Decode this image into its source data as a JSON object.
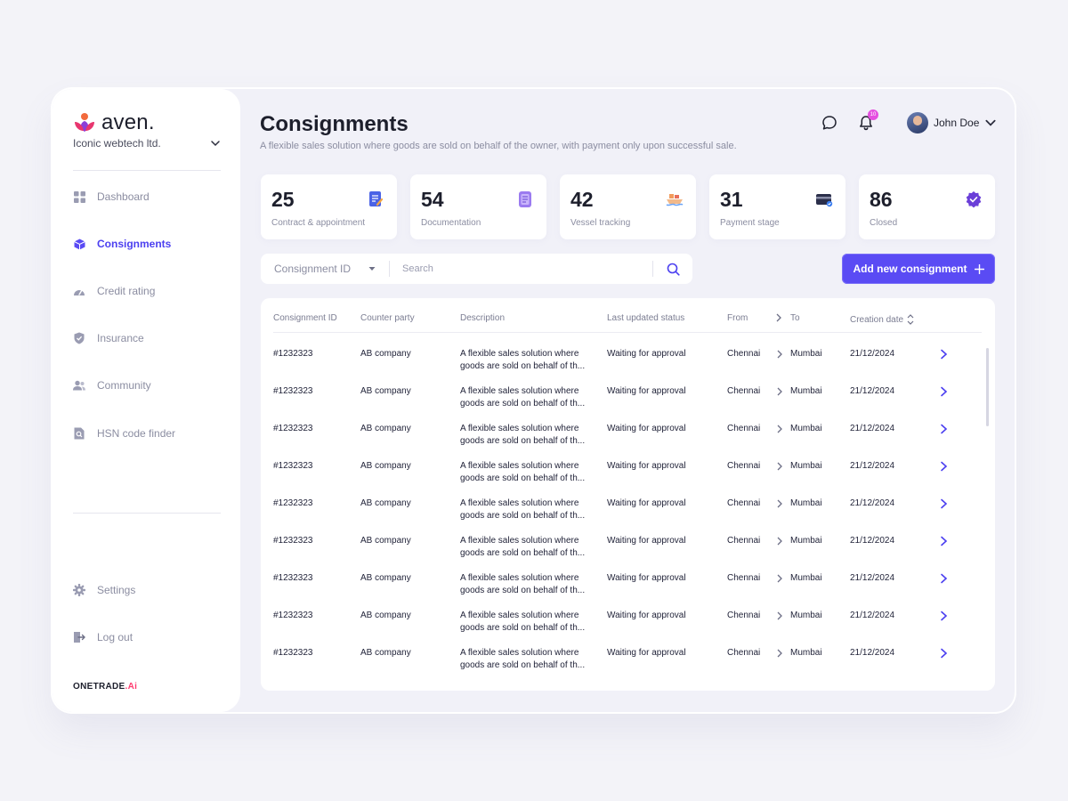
{
  "sidebar": {
    "logo_text": "aven.",
    "company": "Iconic webtech ltd.",
    "nav": [
      {
        "label": "Dashboard",
        "icon": "grid-icon"
      },
      {
        "label": "Consignments",
        "icon": "box-icon"
      },
      {
        "label": "Credit rating",
        "icon": "gauge-icon"
      },
      {
        "label": "Insurance",
        "icon": "shield-check-icon"
      },
      {
        "label": "Community",
        "icon": "users-icon"
      },
      {
        "label": "HSN code finder",
        "icon": "doc-search-icon"
      }
    ],
    "bottom_nav": [
      {
        "label": "Settings",
        "icon": "gear-icon"
      },
      {
        "label": "Log out",
        "icon": "logout-icon"
      }
    ],
    "brand_main": "ONETRADE",
    "brand_accent": ".Ai"
  },
  "header": {
    "title": "Consignments",
    "subtitle": "A flexible sales solution where goods are sold on behalf of the owner, with payment only upon successful sale.",
    "notification_count": "10",
    "user_name": "John Doe"
  },
  "stats": [
    {
      "value": "25",
      "label": "Contract & appointment",
      "icon": "contract-icon"
    },
    {
      "value": "54",
      "label": "Documentation",
      "icon": "document-icon"
    },
    {
      "value": "42",
      "label": "Vessel tracking",
      "icon": "vessel-icon"
    },
    {
      "value": "31",
      "label": "Payment stage",
      "icon": "card-icon"
    },
    {
      "value": "86",
      "label": "Closed",
      "icon": "verified-badge-icon"
    }
  ],
  "filter": {
    "select_value": "Consignment ID",
    "search_placeholder": "Search"
  },
  "add_button_label": "Add new consignment",
  "table": {
    "columns": {
      "id": "Consignment ID",
      "party": "Counter party",
      "description": "Description",
      "status": "Last updated status",
      "from": "From",
      "to": "To",
      "date": "Creation date"
    },
    "rows": [
      {
        "id": "#1232323",
        "party": "AB company",
        "description": "A flexible sales solution where goods are sold on behalf of th...",
        "status": "Waiting for approval",
        "from": "Chennai",
        "to": "Mumbai",
        "date": "21/12/2024"
      },
      {
        "id": "#1232323",
        "party": "AB company",
        "description": "A flexible sales solution where goods are sold on behalf of th...",
        "status": "Waiting for approval",
        "from": "Chennai",
        "to": "Mumbai",
        "date": "21/12/2024"
      },
      {
        "id": "#1232323",
        "party": "AB company",
        "description": "A flexible sales solution where goods are sold on behalf of th...",
        "status": "Waiting for approval",
        "from": "Chennai",
        "to": "Mumbai",
        "date": "21/12/2024"
      },
      {
        "id": "#1232323",
        "party": "AB company",
        "description": "A flexible sales solution where goods are sold on behalf of th...",
        "status": "Waiting for approval",
        "from": "Chennai",
        "to": "Mumbai",
        "date": "21/12/2024"
      },
      {
        "id": "#1232323",
        "party": "AB company",
        "description": "A flexible sales solution where goods are sold on behalf of th...",
        "status": "Waiting for approval",
        "from": "Chennai",
        "to": "Mumbai",
        "date": "21/12/2024"
      },
      {
        "id": "#1232323",
        "party": "AB company",
        "description": "A flexible sales solution where goods are sold on behalf of th...",
        "status": "Waiting for approval",
        "from": "Chennai",
        "to": "Mumbai",
        "date": "21/12/2024"
      },
      {
        "id": "#1232323",
        "party": "AB company",
        "description": "A flexible sales solution where goods are sold on behalf of th...",
        "status": "Waiting for approval",
        "from": "Chennai",
        "to": "Mumbai",
        "date": "21/12/2024"
      },
      {
        "id": "#1232323",
        "party": "AB company",
        "description": "A flexible sales solution where goods are sold on behalf of th...",
        "status": "Waiting for approval",
        "from": "Chennai",
        "to": "Mumbai",
        "date": "21/12/2024"
      },
      {
        "id": "#1232323",
        "party": "AB company",
        "description": "A flexible sales solution where goods are sold on behalf of th...",
        "status": "Waiting for approval",
        "from": "Chennai",
        "to": "Mumbai",
        "date": "21/12/2024"
      }
    ]
  },
  "colors": {
    "accent": "#5a4bf4",
    "active_nav": "#4b3ff0",
    "badge": "#e54fe0"
  }
}
